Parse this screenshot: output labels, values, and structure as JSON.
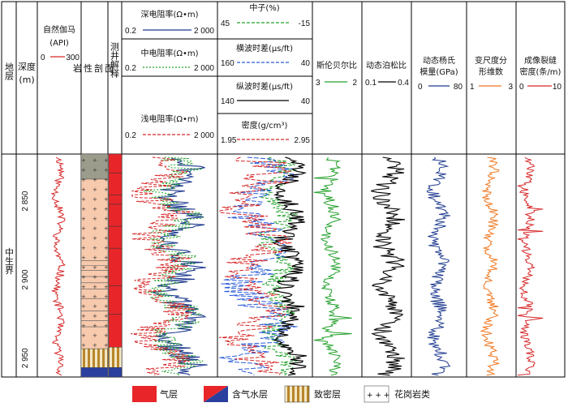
{
  "chart_data": {
    "type": "line",
    "depth_axis": {
      "label_line1": "深度",
      "label_line2": "(m)",
      "range": [
        2820,
        2962
      ],
      "ticks": [
        "2 850",
        "2 900",
        "2 950"
      ],
      "tick_values": [
        2850,
        2900,
        2950
      ]
    },
    "headers": {
      "stratum": "地层",
      "stratum_value": "中生界",
      "lithology": "岩性剖面",
      "interpretation": "测井解释"
    },
    "tracks": [
      {
        "title": "自然伽马",
        "unit": "(API)",
        "min": "0",
        "max": "300",
        "color": "#d62728"
      },
      {
        "title": "深电阻率(Ω•m)",
        "min": "0.2",
        "max": "2 000",
        "color": "#1f3b8f"
      },
      {
        "title": "中电阻率(Ω•m)",
        "min": "0.2",
        "max": "2 000",
        "color": "#22a02a"
      },
      {
        "title": "浅电阻率(Ω•m)",
        "min": "0.2",
        "max": "2 000",
        "color": "#d62728"
      },
      {
        "title": "中子(%)",
        "min": "45",
        "max": "-15",
        "color": "#22a02a"
      },
      {
        "title": "横波时差(μs/ft)",
        "min": "160",
        "max": "40",
        "color": "#2a5bd7"
      },
      {
        "title": "纵波时差(μs/ft)",
        "min": "140",
        "max": "40",
        "color": "#000000"
      },
      {
        "title": "密度(g/cm³)",
        "min": "1.95",
        "max": "2.95",
        "color": "#d62728"
      },
      {
        "title": "斯伦贝尔比",
        "min": "3",
        "max": "2",
        "color": "#22a02a"
      },
      {
        "title": "动态泊松比",
        "min": "0.1",
        "max": "0.4",
        "color": "#000000"
      },
      {
        "title": "动态杨氏模量(GPa)",
        "min": "0",
        "max": "80",
        "color": "#1f3b8f"
      },
      {
        "title": "变尺度分形维数",
        "min": "1",
        "max": "3",
        "color": "#f07820"
      },
      {
        "title": "成像裂缝密度(条/m)",
        "min": "0",
        "max": "10",
        "color": "#d62728"
      }
    ],
    "lithology_intervals": [
      {
        "top": 2820,
        "base": 2836,
        "type": "dark-granite"
      },
      {
        "top": 2836,
        "base": 2944,
        "type": "granite"
      },
      {
        "top": 2944,
        "base": 2956,
        "type": "tight"
      },
      {
        "top": 2956,
        "base": 2962,
        "type": "gas-water"
      }
    ],
    "interpretation_intervals": [
      {
        "top": 2820,
        "base": 2943,
        "type": "gas"
      },
      {
        "top": 2943,
        "base": 2956,
        "type": "tight"
      },
      {
        "top": 2956,
        "base": 2962,
        "type": "gas-water"
      }
    ],
    "legend": [
      {
        "label": "气层",
        "type": "gas",
        "color": "#e8262a"
      },
      {
        "label": "含气水层",
        "type": "gas-water",
        "color": "#2b3f9e"
      },
      {
        "label": "致密层",
        "type": "tight",
        "color": "#b8862a"
      },
      {
        "label": "花岗岩类",
        "type": "granite",
        "color": "#000000"
      }
    ]
  }
}
